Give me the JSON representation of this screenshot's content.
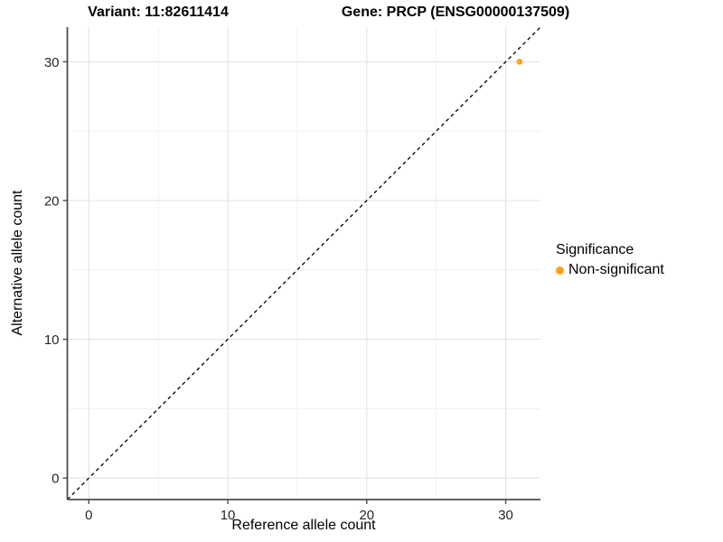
{
  "titles": {
    "left": "Variant: 11:82611414",
    "right": "Gene: PRCP (ENSG00000137509)"
  },
  "chart_data": {
    "type": "scatter",
    "title": "Variant: 11:82611414    Gene: PRCP (ENSG00000137509)",
    "xlabel": "Reference allele count",
    "ylabel": "Alternative allele count",
    "xlim": [
      -1.55,
      32.5
    ],
    "ylim": [
      -1.55,
      32.5
    ],
    "x_ticks": [
      0,
      10,
      20,
      30
    ],
    "y_ticks": [
      0,
      10,
      20,
      30
    ],
    "x_minor_ticks": [
      5,
      15,
      25
    ],
    "y_minor_ticks": [
      5,
      15,
      25
    ],
    "grid": true,
    "reference_line": {
      "kind": "identity y=x",
      "style": "dashed",
      "color": "#000000"
    },
    "series": [
      {
        "name": "Non-significant",
        "color": "#FAA21B",
        "points": [
          {
            "x": 31,
            "y": 30
          }
        ]
      }
    ],
    "legend": {
      "title": "Significance",
      "position": "right",
      "items": [
        {
          "label": "Non-significant",
          "color": "#FAA21B"
        }
      ]
    },
    "style": {
      "panel_bg": "#ffffff",
      "grid_major_color": "#e3e3e3",
      "grid_minor_color": "#efefef",
      "axis_line_color": "#4d4d4d",
      "point_radius": 3.4
    }
  }
}
